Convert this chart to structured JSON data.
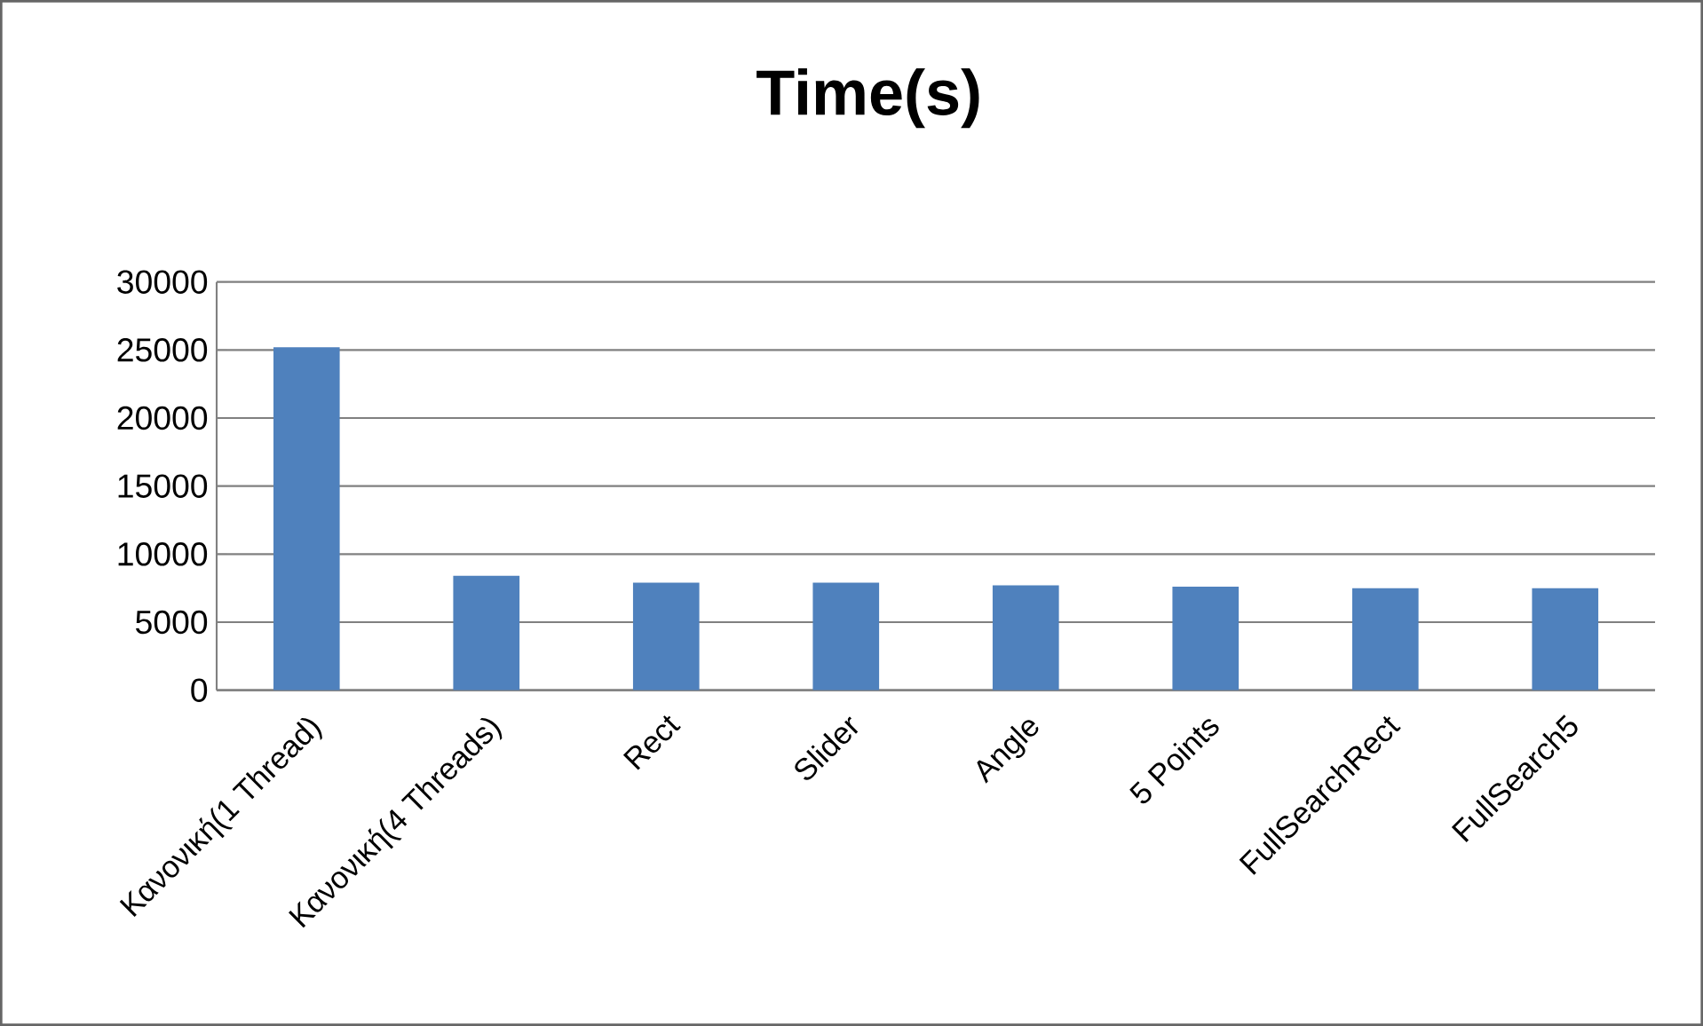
{
  "chart_data": {
    "type": "bar",
    "title": "Time(s)",
    "categories": [
      "Κανονική(1 Thread)",
      "Κανονική(4 Threads)",
      "Rect",
      "Slider",
      "Angle",
      "5 Points",
      "FullSearchRect",
      "FullSearch5"
    ],
    "values": [
      25200,
      8400,
      7900,
      7900,
      7700,
      7600,
      7500,
      7500
    ],
    "color": "#4f81bd",
    "ylim": [
      0,
      30000
    ],
    "yticks": [
      0,
      5000,
      10000,
      15000,
      20000,
      25000,
      30000
    ],
    "grid": "y"
  }
}
